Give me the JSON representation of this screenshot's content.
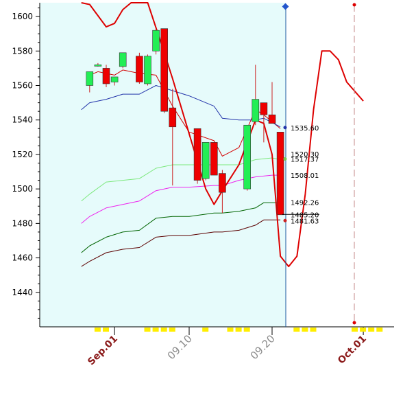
{
  "chart_data": {
    "type": "candlestick",
    "ylim": [
      1420,
      1608
    ],
    "yticks": [
      1440,
      1460,
      1480,
      1500,
      1520,
      1540,
      1560,
      1580,
      1600
    ],
    "xlabels": [
      {
        "text": "Sep.01",
        "day": 1,
        "color": "#8b1a1a",
        "bold": true
      },
      {
        "text": "09.10",
        "day": 10,
        "color": "#8c8c8c",
        "bold": false
      },
      {
        "text": "09.20",
        "day": 20,
        "color": "#8c8c8c",
        "bold": false
      },
      {
        "text": "Oct.01",
        "day": 31,
        "color": "#8b1a1a",
        "bold": true
      }
    ],
    "candles": [
      {
        "day": -2,
        "open": 1560,
        "high": 1568,
        "low": 1556,
        "close": 1568
      },
      {
        "day": -1,
        "open": 1572,
        "high": 1573,
        "low": 1571,
        "close": 1572
      },
      {
        "day": 0,
        "open": 1570,
        "high": 1572,
        "low": 1559,
        "close": 1561
      },
      {
        "day": 1,
        "open": 1562,
        "high": 1565,
        "low": 1560,
        "close": 1565
      },
      {
        "day": 2,
        "open": 1571,
        "high": 1579,
        "low": 1570,
        "close": 1579
      },
      {
        "day": 4,
        "open": 1577,
        "high": 1579,
        "low": 1561,
        "close": 1562
      },
      {
        "day": 5,
        "open": 1561,
        "high": 1578,
        "low": 1560,
        "close": 1577
      },
      {
        "day": 6,
        "open": 1580,
        "high": 1594,
        "low": 1578,
        "close": 1592
      },
      {
        "day": 7,
        "open": 1593,
        "high": 1593,
        "low": 1544,
        "close": 1545
      },
      {
        "day": 8,
        "open": 1547,
        "high": 1558,
        "low": 1502,
        "close": 1536
      },
      {
        "day": 11,
        "open": 1535,
        "high": 1535,
        "low": 1503,
        "close": 1505
      },
      {
        "day": 12,
        "open": 1506,
        "high": 1527,
        "low": 1505,
        "close": 1527
      },
      {
        "day": 13,
        "open": 1527,
        "high": 1527,
        "low": 1508,
        "close": 1508
      },
      {
        "day": 14,
        "open": 1509,
        "high": 1511,
        "low": 1486,
        "close": 1498
      },
      {
        "day": 17,
        "open": 1500,
        "high": 1537,
        "low": 1499,
        "close": 1537
      },
      {
        "day": 18,
        "open": 1539,
        "high": 1572,
        "low": 1537,
        "close": 1552
      },
      {
        "day": 19,
        "open": 1550,
        "high": 1550,
        "low": 1527,
        "close": 1543
      },
      {
        "day": 20,
        "open": 1543,
        "high": 1562,
        "low": 1538,
        "close": 1538
      },
      {
        "day": 21,
        "open": 1533,
        "high": 1533,
        "low": 1485,
        "close": 1485
      }
    ],
    "series": [
      {
        "color": "#d40000",
        "width": 1,
        "points": [
          [
            -2,
            1566
          ],
          [
            -1,
            1568
          ],
          [
            1,
            1566
          ],
          [
            2,
            1569
          ],
          [
            4,
            1567
          ],
          [
            6,
            1566
          ],
          [
            8,
            1548
          ],
          [
            10,
            1533
          ],
          [
            13,
            1528
          ],
          [
            14,
            1519
          ],
          [
            16,
            1524
          ],
          [
            18,
            1546
          ],
          [
            19,
            1543
          ],
          [
            21,
            1535
          ]
        ]
      },
      {
        "color": "#2233aa",
        "width": 1,
        "points": [
          [
            -3,
            1546
          ],
          [
            -2,
            1550
          ],
          [
            0,
            1552
          ],
          [
            2,
            1555
          ],
          [
            3,
            1555
          ],
          [
            4,
            1555
          ],
          [
            6,
            1560
          ],
          [
            8,
            1557
          ],
          [
            10,
            1554
          ],
          [
            13,
            1548
          ],
          [
            14,
            1541
          ],
          [
            16,
            1540
          ],
          [
            18,
            1540
          ],
          [
            19,
            1541
          ],
          [
            21,
            1536
          ]
        ]
      },
      {
        "color": "#7ce87c",
        "width": 1,
        "points": [
          [
            -3,
            1493
          ],
          [
            -2,
            1497
          ],
          [
            0,
            1504
          ],
          [
            2,
            1505
          ],
          [
            4,
            1506
          ],
          [
            6,
            1512
          ],
          [
            8,
            1514
          ],
          [
            10,
            1514
          ],
          [
            13,
            1514
          ],
          [
            14,
            1514
          ],
          [
            16,
            1514
          ],
          [
            18,
            1517
          ],
          [
            20,
            1518
          ],
          [
            21,
            1517
          ]
        ]
      },
      {
        "color": "#ee22ee",
        "width": 1,
        "points": [
          [
            -3,
            1480
          ],
          [
            -2,
            1484
          ],
          [
            0,
            1489
          ],
          [
            2,
            1491
          ],
          [
            4,
            1493
          ],
          [
            6,
            1499
          ],
          [
            8,
            1501
          ],
          [
            10,
            1501
          ],
          [
            13,
            1502
          ],
          [
            14,
            1502
          ],
          [
            16,
            1505
          ],
          [
            18,
            1507
          ],
          [
            20,
            1508
          ],
          [
            21,
            1508
          ]
        ]
      },
      {
        "color": "#006400",
        "width": 1,
        "points": [
          [
            -3,
            1463
          ],
          [
            -2,
            1467
          ],
          [
            0,
            1472
          ],
          [
            2,
            1475
          ],
          [
            4,
            1476
          ],
          [
            6,
            1483
          ],
          [
            8,
            1484
          ],
          [
            10,
            1484
          ],
          [
            13,
            1486
          ],
          [
            14,
            1486
          ],
          [
            16,
            1487
          ],
          [
            18,
            1489
          ],
          [
            19,
            1492
          ],
          [
            21,
            1492
          ]
        ]
      },
      {
        "color": "#5c0000",
        "width": 1,
        "points": [
          [
            -3,
            1455
          ],
          [
            -2,
            1458
          ],
          [
            0,
            1463
          ],
          [
            2,
            1465
          ],
          [
            4,
            1466
          ],
          [
            6,
            1472
          ],
          [
            8,
            1473
          ],
          [
            10,
            1473
          ],
          [
            13,
            1475
          ],
          [
            14,
            1475
          ],
          [
            16,
            1476
          ],
          [
            18,
            1479
          ],
          [
            19,
            1482
          ],
          [
            21,
            1482
          ]
        ]
      },
      {
        "color": "#dd0000",
        "width": 2,
        "points": [
          [
            -3,
            1608
          ],
          [
            -2,
            1607
          ],
          [
            0,
            1594
          ],
          [
            1,
            1596
          ],
          [
            2,
            1604
          ],
          [
            3,
            1608
          ],
          [
            5,
            1608
          ],
          [
            7,
            1579
          ],
          [
            8,
            1564
          ],
          [
            10,
            1532
          ],
          [
            12,
            1500
          ],
          [
            13,
            1491
          ],
          [
            14,
            1499
          ],
          [
            16,
            1514
          ],
          [
            18,
            1540
          ],
          [
            19,
            1538
          ],
          [
            20,
            1520
          ],
          [
            21,
            1461
          ],
          [
            22,
            1455
          ],
          [
            23,
            1461
          ],
          [
            24,
            1497
          ],
          [
            25,
            1546
          ],
          [
            26,
            1580
          ],
          [
            27,
            1580
          ],
          [
            28,
            1575
          ],
          [
            29,
            1562
          ],
          [
            31,
            1551
          ]
        ]
      }
    ],
    "value_labels": [
      {
        "text": "1535.60",
        "value": 1535.6
      },
      {
        "text": "1520.30",
        "value": 1520.3
      },
      {
        "text": "1517.37",
        "value": 1517.37
      },
      {
        "text": "1508.01",
        "value": 1508.01
      },
      {
        "text": "1492.26",
        "value": 1492.26
      },
      {
        "text": "1485.20",
        "value": 1485.2
      },
      {
        "text": "1481.63",
        "value": 1481.63
      }
    ],
    "bull_color": "#22ee55",
    "bear_color": "#ee0000",
    "background_shade": "#e6fbfb",
    "marker_color": "#ffee00"
  }
}
